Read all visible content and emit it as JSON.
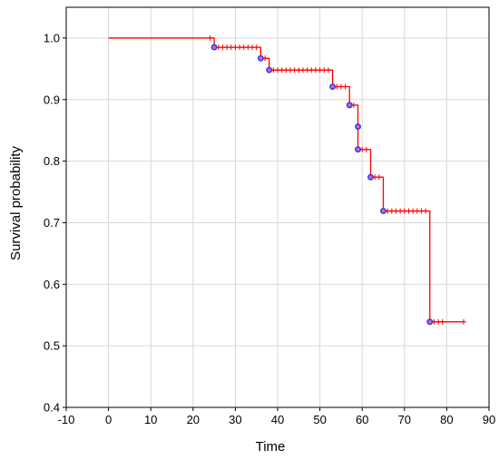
{
  "chart_data": {
    "type": "line",
    "title": "",
    "xlabel": "Time",
    "ylabel": "Survival probability",
    "xlim": [
      -10,
      90
    ],
    "ylim": [
      0.4,
      1.05
    ],
    "x_ticks": [
      -10,
      0,
      10,
      20,
      30,
      40,
      50,
      60,
      70,
      80,
      90
    ],
    "x_tick_labels": [
      "-10",
      "0",
      "10",
      "20",
      "30",
      "40",
      "50",
      "60",
      "70",
      "80",
      "90"
    ],
    "y_ticks": [
      0.4,
      0.5,
      0.6,
      0.7,
      0.8,
      0.9,
      1.0
    ],
    "y_tick_labels": [
      "0.4",
      "0.5",
      "0.6",
      "0.7",
      "0.8",
      "0.9",
      "1.0"
    ],
    "grid": true,
    "series": [
      {
        "style": "step",
        "color": "#ff0000",
        "x": [
          0,
          25,
          36,
          38,
          53,
          57,
          59,
          59,
          62,
          65,
          76,
          84
        ],
        "y": [
          1.0,
          0.985,
          0.967,
          0.948,
          0.921,
          0.891,
          0.856,
          0.819,
          0.774,
          0.719,
          0.539,
          0.539
        ]
      }
    ],
    "events": {
      "marker": "circle",
      "color": "#3333cc",
      "x": [
        25,
        36,
        38,
        53,
        57,
        59,
        59,
        62,
        65,
        76
      ],
      "y": [
        0.985,
        0.967,
        0.948,
        0.921,
        0.891,
        0.856,
        0.819,
        0.774,
        0.719,
        0.539
      ]
    },
    "censored": {
      "marker": "plus",
      "color": "#ff0000",
      "x": [
        24,
        26,
        27,
        28,
        29,
        30,
        31,
        32,
        33,
        34,
        35,
        37,
        39,
        40,
        41,
        42,
        43,
        44,
        45,
        46,
        47,
        48,
        49,
        50,
        51,
        52,
        54,
        55,
        56,
        58,
        60,
        61,
        63,
        64,
        66,
        67,
        68,
        69,
        70,
        71,
        72,
        73,
        74,
        75,
        77,
        78,
        79,
        84
      ],
      "y": [
        1.0,
        0.985,
        0.985,
        0.985,
        0.985,
        0.985,
        0.985,
        0.985,
        0.985,
        0.985,
        0.985,
        0.967,
        0.948,
        0.948,
        0.948,
        0.948,
        0.948,
        0.948,
        0.948,
        0.948,
        0.948,
        0.948,
        0.948,
        0.948,
        0.948,
        0.948,
        0.921,
        0.921,
        0.921,
        0.891,
        0.819,
        0.819,
        0.774,
        0.774,
        0.719,
        0.719,
        0.719,
        0.719,
        0.719,
        0.719,
        0.719,
        0.719,
        0.719,
        0.719,
        0.539,
        0.539,
        0.539,
        0.539
      ]
    }
  }
}
